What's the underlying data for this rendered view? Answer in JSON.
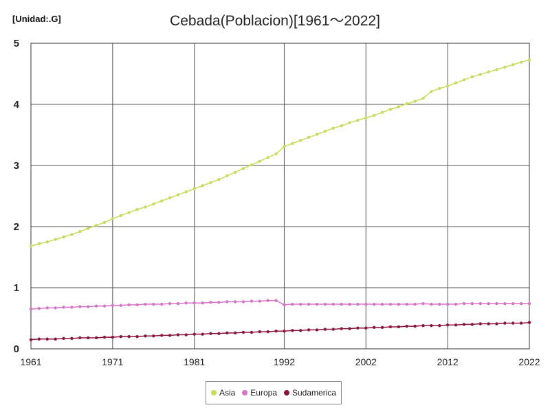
{
  "chart_data": {
    "type": "line",
    "title": "Cebada(Poblacion)[1961〜2022]",
    "unit_label": "[Unidad:.G]",
    "xlabel": "",
    "ylabel": "",
    "xlim": [
      1961,
      2022
    ],
    "ylim": [
      0,
      5
    ],
    "x_ticks": [
      "1961",
      "1971",
      "1981",
      "1992",
      "2002",
      "2012",
      "2022"
    ],
    "x_tick_values": [
      1961,
      1971,
      1981,
      1992,
      2002,
      2012,
      2022
    ],
    "y_ticks": [
      "0",
      "1",
      "2",
      "3",
      "4",
      "5"
    ],
    "y_tick_values": [
      0,
      1,
      2,
      3,
      4,
      5
    ],
    "grid": true,
    "legend_position": "bottom",
    "x": [
      1961,
      1962,
      1963,
      1964,
      1965,
      1966,
      1967,
      1968,
      1969,
      1970,
      1971,
      1972,
      1973,
      1974,
      1975,
      1976,
      1977,
      1978,
      1979,
      1980,
      1981,
      1982,
      1983,
      1984,
      1985,
      1986,
      1987,
      1988,
      1989,
      1990,
      1991,
      1992,
      1993,
      1994,
      1995,
      1996,
      1997,
      1998,
      1999,
      2000,
      2001,
      2002,
      2003,
      2004,
      2005,
      2006,
      2007,
      2008,
      2009,
      2010,
      2011,
      2012,
      2013,
      2014,
      2015,
      2016,
      2017,
      2018,
      2019,
      2020,
      2021,
      2022
    ],
    "series": [
      {
        "name": "Asia",
        "color": "#c5dd5c",
        "values": [
          1.68,
          1.72,
          1.75,
          1.79,
          1.83,
          1.87,
          1.92,
          1.97,
          2.02,
          2.07,
          2.13,
          2.18,
          2.23,
          2.28,
          2.32,
          2.37,
          2.42,
          2.47,
          2.52,
          2.57,
          2.62,
          2.67,
          2.72,
          2.77,
          2.83,
          2.89,
          2.95,
          3.01,
          3.07,
          3.13,
          3.19,
          3.31,
          3.36,
          3.41,
          3.46,
          3.51,
          3.56,
          3.61,
          3.65,
          3.7,
          3.74,
          3.78,
          3.82,
          3.87,
          3.92,
          3.96,
          4.01,
          4.05,
          4.1,
          4.21,
          4.26,
          4.3,
          4.35,
          4.4,
          4.45,
          4.49,
          4.53,
          4.57,
          4.61,
          4.65,
          4.69,
          4.73
        ]
      },
      {
        "name": "Europa",
        "color": "#d874c8",
        "values": [
          0.65,
          0.66,
          0.67,
          0.67,
          0.68,
          0.68,
          0.69,
          0.69,
          0.7,
          0.7,
          0.71,
          0.71,
          0.72,
          0.72,
          0.73,
          0.73,
          0.73,
          0.74,
          0.74,
          0.75,
          0.75,
          0.75,
          0.76,
          0.76,
          0.77,
          0.77,
          0.77,
          0.78,
          0.78,
          0.79,
          0.79,
          0.72,
          0.73,
          0.73,
          0.73,
          0.73,
          0.73,
          0.73,
          0.73,
          0.73,
          0.73,
          0.73,
          0.73,
          0.73,
          0.73,
          0.73,
          0.73,
          0.73,
          0.74,
          0.73,
          0.73,
          0.73,
          0.73,
          0.74,
          0.74,
          0.74,
          0.74,
          0.74,
          0.74,
          0.74,
          0.74,
          0.74
        ]
      },
      {
        "name": "Sudamerica",
        "color": "#8b1538",
        "values": [
          0.15,
          0.16,
          0.16,
          0.16,
          0.17,
          0.17,
          0.18,
          0.18,
          0.18,
          0.19,
          0.19,
          0.2,
          0.2,
          0.2,
          0.21,
          0.21,
          0.22,
          0.22,
          0.23,
          0.23,
          0.24,
          0.24,
          0.25,
          0.25,
          0.26,
          0.26,
          0.27,
          0.27,
          0.28,
          0.28,
          0.29,
          0.29,
          0.3,
          0.3,
          0.31,
          0.31,
          0.32,
          0.32,
          0.33,
          0.33,
          0.34,
          0.34,
          0.35,
          0.35,
          0.36,
          0.36,
          0.37,
          0.37,
          0.38,
          0.38,
          0.38,
          0.39,
          0.39,
          0.4,
          0.4,
          0.41,
          0.41,
          0.41,
          0.42,
          0.42,
          0.42,
          0.43
        ]
      }
    ]
  }
}
